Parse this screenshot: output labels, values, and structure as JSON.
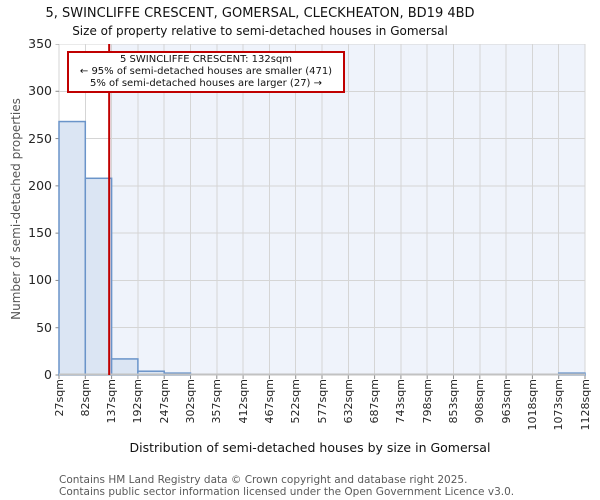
{
  "header": {
    "title": "5, SWINCLIFFE CRESCENT, GOMERSAL, CLECKHEATON, BD19 4BD",
    "subtitle": "Size of property relative to semi-detached houses in Gomersal"
  },
  "chart_data": {
    "type": "bar",
    "title": "5, SWINCLIFFE CRESCENT, GOMERSAL, CLECKHEATON, BD19 4BD",
    "subtitle": "Size of property relative to semi-detached houses in Gomersal",
    "xlabel": "Distribution of semi-detached houses by size in Gomersal",
    "ylabel": "Number of semi-detached properties",
    "categories": [
      "27sqm",
      "82sqm",
      "137sqm",
      "192sqm",
      "247sqm",
      "302sqm",
      "357sqm",
      "412sqm",
      "467sqm",
      "522sqm",
      "577sqm",
      "632sqm",
      "687sqm",
      "743sqm",
      "798sqm",
      "853sqm",
      "908sqm",
      "963sqm",
      "1018sqm",
      "1073sqm",
      "1128sqm"
    ],
    "values": [
      268,
      208,
      17,
      4,
      2,
      0,
      0,
      0,
      0,
      0,
      0,
      0,
      0,
      0,
      0,
      0,
      0,
      0,
      0,
      2
    ],
    "x_range_sqm": [
      27,
      1128
    ],
    "ylim": [
      0,
      350
    ],
    "y_ticks": [
      0,
      50,
      100,
      150,
      200,
      250,
      300,
      350
    ],
    "grid": true,
    "legend": "none",
    "marker": {
      "value_sqm": 132
    },
    "highlight_right_of_marker": true,
    "colors": {
      "bar_fill": "#dbe5f3",
      "bar_edge": "#6a94c9",
      "grid": "#d5d5d5",
      "plot_bg": "#ffffff",
      "highlight_bg": "#eff3fb",
      "axis_line": "#c2c2c2",
      "tick_mark": "#8a8a8a",
      "marker_line": "#c00000"
    }
  },
  "annotation": {
    "line1": "5 SWINCLIFFE CRESCENT: 132sqm",
    "line2": "← 95% of semi-detached houses are smaller (471)",
    "line3": "5% of semi-detached houses are larger (27) →",
    "border_color": "#c00000"
  },
  "footer": {
    "line1": "Contains HM Land Registry data © Crown copyright and database right 2025.",
    "line2": "Contains public sector information licensed under the Open Government Licence v3.0."
  }
}
